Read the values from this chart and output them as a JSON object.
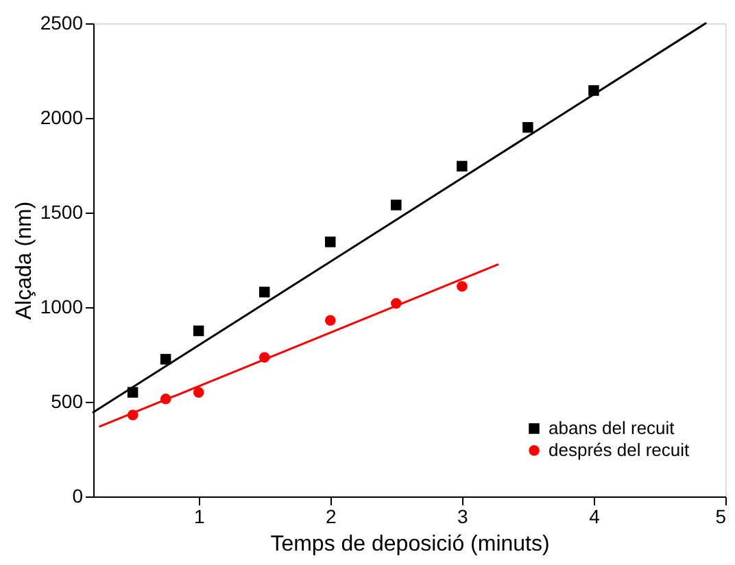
{
  "chart_data": {
    "type": "scatter",
    "xlabel": "Temps de deposició (minuts)",
    "ylabel": "Alçada (nm)",
    "xlim": [
      0.2,
      5
    ],
    "xticks": [
      1,
      2,
      3,
      4,
      5
    ],
    "ylim": [
      0,
      2500
    ],
    "yticks": [
      0,
      500,
      1000,
      1500,
      2000,
      2500
    ],
    "grid": false,
    "legend": "bottom right",
    "series": [
      {
        "name": "abans del recuit",
        "color": "#000000",
        "marker": "square",
        "x": [
          0.5,
          0.75,
          1,
          1.5,
          2,
          2.5,
          3,
          3.5,
          4
        ],
        "values": [
          550,
          725,
          875,
          1080,
          1345,
          1540,
          1745,
          1950,
          2145
        ]
      },
      {
        "name": "després del recuit",
        "color": "#ff0000",
        "marker": "circle",
        "x": [
          0.5,
          0.75,
          1,
          1.5,
          2,
          2.5,
          3
        ],
        "values": [
          430,
          515,
          550,
          735,
          930,
          1020,
          1110
        ]
      },
      {
        "type": "line",
        "color": "#000000",
        "x": [
          0.2,
          4.85
        ],
        "values": [
          445,
          2500
        ]
      },
      {
        "type": "line",
        "color": "#ff0000",
        "x": [
          0.25,
          3.27
        ],
        "values": [
          370,
          1225
        ]
      }
    ]
  }
}
